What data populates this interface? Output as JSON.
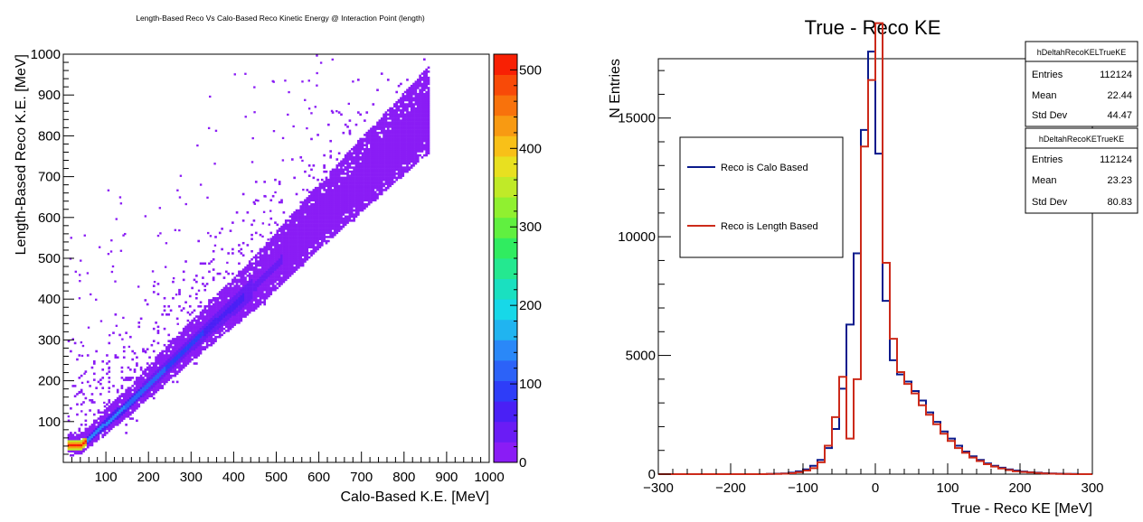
{
  "chart_data": [
    {
      "type": "heatmap",
      "title": "Length-Based Reco Vs Calo-Based Reco Kinetic Energy @ Interaction Point (length)",
      "xlabel": "Calo-Based K.E. [MeV]",
      "ylabel": "Length-Based Reco  K.E. [MeV]",
      "xlim": [
        0,
        1000
      ],
      "ylim": [
        0,
        1000
      ],
      "xticks": [
        100,
        200,
        300,
        400,
        500,
        600,
        700,
        800,
        900,
        1000
      ],
      "yticks": [
        100,
        200,
        300,
        400,
        500,
        600,
        700,
        800,
        900,
        1000
      ],
      "colorbar": {
        "range": [
          0,
          520
        ],
        "ticks": [
          0,
          100,
          200,
          300,
          400,
          500
        ],
        "tick_labels": [
          "0",
          "100",
          "200",
          "300",
          "400",
          "500"
        ],
        "palette": [
          "#8a1cf5",
          "#6a1cf5",
          "#4a20f5",
          "#2e3df8",
          "#2c62f8",
          "#2a88f8",
          "#20b4f0",
          "#17d8e8",
          "#1ae0c0",
          "#24e890",
          "#30ec60",
          "#60f040",
          "#90f030",
          "#c0ea28",
          "#e8e020",
          "#f8c018",
          "#f89a12",
          "#f8720c",
          "#f84a08",
          "#f82004"
        ]
      },
      "hotspot": {
        "x": 40,
        "y": 40,
        "value": 520
      },
      "ridge": [
        [
          40,
          40
        ],
        [
          150,
          140
        ],
        [
          300,
          290
        ],
        [
          450,
          430
        ],
        [
          600,
          590
        ],
        [
          750,
          740
        ],
        [
          860,
          850
        ]
      ]
    },
    {
      "type": "line",
      "title": "True - Reco KE",
      "xlabel": "True - Reco KE [MeV]",
      "ylabel": "N Entries",
      "xlim": [
        -300,
        300
      ],
      "ylim": [
        0,
        17500
      ],
      "xticks": [
        -300,
        -200,
        -100,
        0,
        100,
        200,
        300
      ],
      "xtick_labels": [
        "−300",
        "−200",
        "−100",
        "0",
        "100",
        "200",
        "300"
      ],
      "yticks": [
        0,
        5000,
        10000,
        15000
      ],
      "bin_edges": [
        -300,
        -290,
        -280,
        -270,
        -260,
        -250,
        -240,
        -230,
        -220,
        -210,
        -200,
        -190,
        -180,
        -170,
        -160,
        -150,
        -140,
        -130,
        -120,
        -110,
        -100,
        -90,
        -80,
        -70,
        -60,
        -50,
        -40,
        -30,
        -20,
        -10,
        0,
        10,
        20,
        30,
        40,
        50,
        60,
        70,
        80,
        90,
        100,
        110,
        120,
        130,
        140,
        150,
        160,
        170,
        180,
        190,
        200,
        210,
        220,
        230,
        240,
        250,
        260,
        270,
        280,
        290,
        300
      ],
      "series": [
        {
          "name": "Reco is Calo Based",
          "color": "#0a1a8c",
          "values": [
            0,
            0,
            0,
            0,
            0,
            0,
            0,
            0,
            0,
            0,
            0,
            0,
            0,
            0,
            0,
            10,
            20,
            30,
            60,
            120,
            200,
            350,
            600,
            1100,
            1900,
            3600,
            6300,
            9300,
            14500,
            17800,
            13500,
            7300,
            4800,
            4200,
            3900,
            3500,
            3100,
            2600,
            2200,
            1800,
            1500,
            1200,
            950,
            750,
            600,
            450,
            350,
            270,
            200,
            150,
            110,
            80,
            60,
            40,
            30,
            20,
            10,
            10,
            0,
            0
          ]
        },
        {
          "name": "Reco is Length Based",
          "color": "#cc2a1a",
          "values": [
            0,
            0,
            0,
            0,
            0,
            0,
            0,
            0,
            0,
            0,
            0,
            0,
            0,
            0,
            0,
            10,
            10,
            20,
            40,
            80,
            150,
            250,
            500,
            1200,
            2400,
            4100,
            1500,
            4000,
            13800,
            16600,
            19000,
            8900,
            5700,
            4300,
            3800,
            3400,
            2900,
            2500,
            2100,
            1700,
            1400,
            1100,
            900,
            700,
            550,
            420,
            320,
            240,
            170,
            120,
            90,
            70,
            50,
            30,
            20,
            10,
            10,
            0,
            0,
            0
          ]
        }
      ],
      "stats_boxes": [
        {
          "name": "hDeltahRecoKELTrueKE",
          "entries_label": "Entries",
          "entries": "112124",
          "mean_label": "Mean",
          "mean": "22.44",
          "stddev_label": "Std Dev",
          "stddev": "44.47"
        },
        {
          "name": "hDeltahRecoKETrueKE",
          "entries_label": "Entries",
          "entries": "112124",
          "mean_label": "Mean",
          "mean": "23.23",
          "stddev_label": "Std Dev",
          "stddev": "80.83"
        }
      ]
    }
  ]
}
